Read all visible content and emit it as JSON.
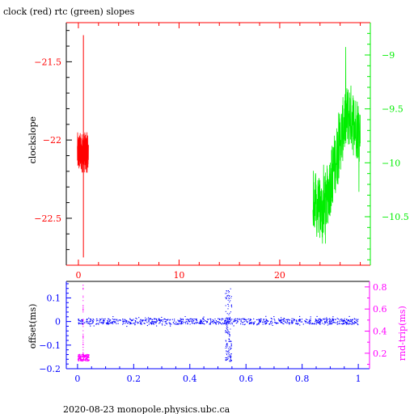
{
  "title": "clock (red) rtc (green) slopes",
  "footer": "2020-08-23  monopole.physics.ubc.ca",
  "colors": {
    "clock": "#ff0000",
    "rtc": "#00ee00",
    "offset": "#0000ff",
    "rndtrip": "#ff00ff",
    "frame": "#000000"
  },
  "chart_data": [
    {
      "type": "line",
      "title": "clock (red) rtc (green) slopes",
      "ylabel": "clockslope",
      "xlabel": "",
      "xlim": [
        -1.2,
        29
      ],
      "x_ticks": [
        0,
        10,
        20
      ],
      "ylim_left": [
        -22.8,
        -21.25
      ],
      "y_left_ticks": [
        -21.5,
        -22,
        -22.5
      ],
      "ylim_right": [
        -10.95,
        -8.7
      ],
      "y_right_ticks": [
        -9,
        -9.5,
        -10,
        -10.5
      ],
      "series": [
        {
          "name": "clock",
          "axis": "left",
          "color": "#ff0000",
          "x_range": [
            -0.1,
            1.0
          ],
          "y_center": -22.08,
          "y_spread": 0.13,
          "spike_x": 0.5,
          "spike_y": [
            -22.75,
            -21.33
          ]
        },
        {
          "name": "rtc",
          "axis": "right",
          "color": "#00ee00",
          "x_range": [
            23.3,
            28
          ],
          "points": [
            [
              23.3,
              -10.35
            ],
            [
              24,
              -10.45
            ],
            [
              24.5,
              -10.4
            ],
            [
              25,
              -10.2
            ],
            [
              25.5,
              -10.0
            ],
            [
              26,
              -9.8
            ],
            [
              26.5,
              -9.6
            ],
            [
              27,
              -9.55
            ],
            [
              27.5,
              -9.65
            ],
            [
              28,
              -9.7
            ]
          ],
          "y_min": -10.75,
          "y_max": -8.8
        }
      ]
    },
    {
      "type": "scatter",
      "ylabel": "offset(ms)",
      "ylabel_right": "rnd-trip(ms)",
      "xlim": [
        -0.04,
        1.04
      ],
      "x_ticks": [
        0,
        0.2,
        0.4,
        0.6,
        0.8,
        1
      ],
      "x_tick_labels": [
        "0",
        "0.2",
        "0.4",
        "0.6",
        "0.8",
        "1"
      ],
      "ylim_left": [
        -0.2,
        0.17
      ],
      "y_left_ticks": [
        0.1,
        0,
        -0.1,
        -0.2
      ],
      "ylim_right": [
        0.06,
        0.85
      ],
      "y_right_ticks": [
        0.8,
        0.6,
        0.4,
        0.2
      ],
      "series": [
        {
          "name": "offset",
          "axis": "left",
          "color": "#0000ff",
          "x_range": [
            0,
            1
          ],
          "y_center": 0.0,
          "y_spread": 0.012,
          "glitch_x": [
            0.525,
            0.548
          ],
          "glitch_y_range": [
            -0.17,
            0.14
          ]
        },
        {
          "name": "rnd-trip",
          "axis": "right",
          "color": "#ff00ff",
          "x_range": [
            0.0,
            0.04
          ],
          "y_center": 0.16,
          "y_spread": 0.03,
          "spike_x": 0.02,
          "spike_y": [
            0.12,
            0.82
          ]
        }
      ]
    }
  ]
}
